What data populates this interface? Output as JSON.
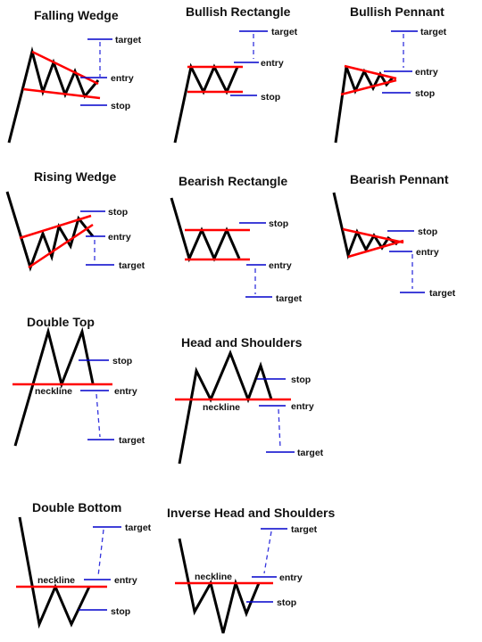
{
  "patterns": {
    "falling_wedge": {
      "title": "Falling Wedge",
      "target": "target",
      "entry": "entry",
      "stop": "stop"
    },
    "bullish_rectangle": {
      "title": "Bullish Rectangle",
      "target": "target",
      "entry": "entry",
      "stop": "stop"
    },
    "bullish_pennant": {
      "title": "Bullish Pennant",
      "target": "target",
      "entry": "entry",
      "stop": "stop"
    },
    "rising_wedge": {
      "title": "Rising Wedge",
      "stop": "stop",
      "entry": "entry",
      "target": "target"
    },
    "bearish_rectangle": {
      "title": "Bearish Rectangle",
      "stop": "stop",
      "entry": "entry",
      "target": "target"
    },
    "bearish_pennant": {
      "title": "Bearish Pennant",
      "stop": "stop",
      "entry": "entry",
      "target": "target"
    },
    "double_top": {
      "title": "Double Top",
      "stop": "stop",
      "neckline": "neckline",
      "entry": "entry",
      "target": "target"
    },
    "head_and_shoulders": {
      "title": "Head and Shoulders",
      "stop": "stop",
      "neckline": "neckline",
      "entry": "entry",
      "target": "target"
    },
    "double_bottom": {
      "title": "Double Bottom",
      "target": "target",
      "neckline": "neckline",
      "entry": "entry",
      "stop": "stop"
    },
    "inverse_head_and_shoulders": {
      "title": "Inverse Head and Shoulders",
      "target": "target",
      "neckline": "neckline",
      "entry": "entry",
      "stop": "stop"
    }
  },
  "colors": {
    "price_line": "#000000",
    "trendline": "#ff0000",
    "level_line": "#0000cc"
  }
}
